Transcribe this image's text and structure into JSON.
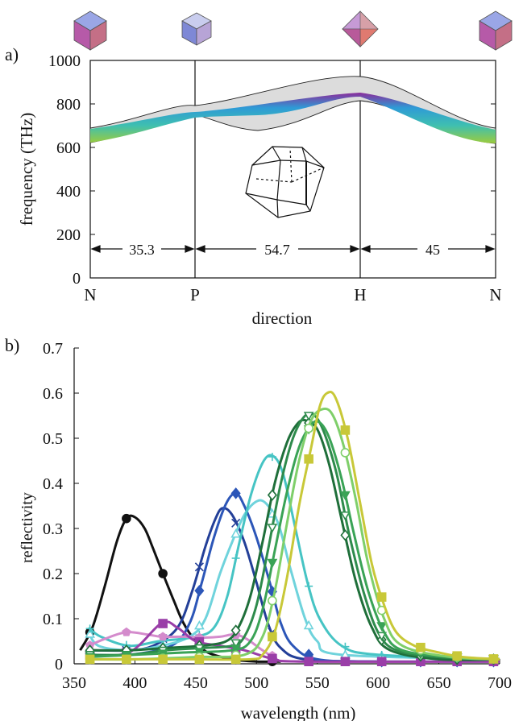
{
  "panel_a": {
    "letter": "a)",
    "ylabel": "frequency (THz)",
    "xlabel": "direction",
    "points": [
      "N",
      "P",
      "H",
      "N"
    ],
    "spans": [
      "35.3",
      "54.7",
      "45"
    ],
    "colors": {
      "band_gray": "#d9d9d9",
      "band_purple": "#8b2c9b",
      "band_blue": "#2e9bd6",
      "band_teal": "#3fbfb0",
      "band_green": "#9ccc3c"
    }
  },
  "panel_b": {
    "letter": "b)",
    "xlabel": "wavelength (nm)",
    "ylabel": "reflectivity"
  },
  "chart_data": [
    {
      "type": "area",
      "panel": "a",
      "ylabel": "frequency (THz)",
      "xlabel": "direction",
      "ylim": [
        0,
        1000
      ],
      "yticks": [
        0,
        200,
        400,
        600,
        800,
        1000
      ],
      "x_segments_deg": [
        35.3,
        54.7,
        45
      ],
      "xticks": [
        "N",
        "P",
        "H",
        "N"
      ],
      "bands": {
        "outer_top": [
          [
            0,
            690
          ],
          [
            35.3,
            790
          ],
          [
            90,
            925
          ],
          [
            135,
            690
          ]
        ],
        "outer_bottom": [
          [
            0,
            625
          ],
          [
            35.3,
            750
          ],
          [
            60,
            745
          ],
          [
            90,
            815
          ],
          [
            135,
            630
          ]
        ],
        "colored_top": [
          [
            0,
            685
          ],
          [
            35.3,
            755
          ],
          [
            90,
            845
          ],
          [
            135,
            680
          ]
        ],
        "colored_bottom": [
          [
            0,
            630
          ],
          [
            35.3,
            745
          ],
          [
            90,
            830
          ],
          [
            135,
            640
          ]
        ]
      }
    },
    {
      "type": "line",
      "panel": "b",
      "xlabel": "wavelength (nm)",
      "ylabel": "reflectivity",
      "xlim": [
        350,
        700
      ],
      "ylim": [
        0,
        0.7
      ],
      "xticks": [
        350,
        400,
        450,
        500,
        550,
        600,
        650,
        700
      ],
      "yticks": [
        0,
        0.1,
        0.2,
        0.3,
        0.4,
        0.5,
        0.6,
        0.7
      ],
      "series": [
        {
          "color": "#111111",
          "marker": "circle-filled",
          "points": [
            [
              355,
              0.03
            ],
            [
              365,
              0.08
            ],
            [
              375,
              0.17
            ],
            [
              385,
              0.27
            ],
            [
              393,
              0.322
            ],
            [
              400,
              0.325
            ],
            [
              408,
              0.3
            ],
            [
              415,
              0.255
            ],
            [
              423,
              0.2
            ],
            [
              432,
              0.14
            ],
            [
              440,
              0.09
            ],
            [
              450,
              0.05
            ],
            [
              460,
              0.025
            ],
            [
              480,
              0.01
            ],
            [
              500,
              0.005
            ],
            [
              520,
              0.005
            ]
          ]
        },
        {
          "color": "#233f98",
          "marker": "x",
          "points": [
            [
              365,
              0.03
            ],
            [
              395,
              0.03
            ],
            [
              415,
              0.04
            ],
            [
              435,
              0.08
            ],
            [
              447,
              0.16
            ],
            [
              458,
              0.26
            ],
            [
              466,
              0.32
            ],
            [
              472,
              0.345
            ],
            [
              480,
              0.33
            ],
            [
              490,
              0.27
            ],
            [
              500,
              0.18
            ],
            [
              510,
              0.085
            ],
            [
              520,
              0.035
            ],
            [
              540,
              0.01
            ],
            [
              600,
              0.005
            ],
            [
              700,
              0.005
            ]
          ]
        },
        {
          "color": "#2c56b8",
          "marker": "diamond-filled",
          "points": [
            [
              365,
              0.02
            ],
            [
              395,
              0.02
            ],
            [
              430,
              0.04
            ],
            [
              445,
              0.09
            ],
            [
              455,
              0.18
            ],
            [
              465,
              0.28
            ],
            [
              475,
              0.355
            ],
            [
              483,
              0.378
            ],
            [
              490,
              0.35
            ],
            [
              500,
              0.28
            ],
            [
              512,
              0.17
            ],
            [
              520,
              0.09
            ],
            [
              530,
              0.04
            ],
            [
              550,
              0.01
            ],
            [
              600,
              0.005
            ],
            [
              700,
              0.005
            ]
          ]
        },
        {
          "color": "#6fd3dc",
          "marker": "triangle-open",
          "points": [
            [
              362,
              0.07
            ],
            [
              370,
              0.04
            ],
            [
              395,
              0.03
            ],
            [
              422,
              0.04
            ],
            [
              445,
              0.06
            ],
            [
              458,
              0.1
            ],
            [
              470,
              0.2
            ],
            [
              480,
              0.27
            ],
            [
              490,
              0.33
            ],
            [
              500,
              0.36
            ],
            [
              508,
              0.355
            ],
            [
              518,
              0.31
            ],
            [
              528,
              0.21
            ],
            [
              540,
              0.1
            ],
            [
              550,
              0.05
            ],
            [
              570,
              0.02
            ],
            [
              700,
              0.01
            ]
          ]
        },
        {
          "color": "#46c4c4",
          "marker": "plus",
          "points": [
            [
              362,
              0.08
            ],
            [
              372,
              0.06
            ],
            [
              395,
              0.04
            ],
            [
              420,
              0.05
            ],
            [
              450,
              0.06
            ],
            [
              465,
              0.08
            ],
            [
              476,
              0.15
            ],
            [
              486,
              0.27
            ],
            [
              496,
              0.38
            ],
            [
              506,
              0.45
            ],
            [
              514,
              0.46
            ],
            [
              522,
              0.42
            ],
            [
              532,
              0.3
            ],
            [
              542,
              0.18
            ],
            [
              552,
              0.1
            ],
            [
              570,
              0.04
            ],
            [
              600,
              0.02
            ],
            [
              700,
              0.01
            ]
          ]
        },
        {
          "color": "#d48bcc",
          "marker": "pentagon-filled",
          "points": [
            [
              362,
              0.04
            ],
            [
              375,
              0.055
            ],
            [
              393,
              0.07
            ],
            [
              410,
              0.065
            ],
            [
              422,
              0.06
            ],
            [
              440,
              0.06
            ],
            [
              455,
              0.058
            ],
            [
              470,
              0.06
            ],
            [
              482,
              0.065
            ],
            [
              492,
              0.055
            ],
            [
              505,
              0.03
            ],
            [
              515,
              0.015
            ],
            [
              535,
              0.005
            ],
            [
              700,
              0.005
            ]
          ]
        },
        {
          "color": "#9a3ea8",
          "marker": "square-filled",
          "points": [
            [
              362,
              0.02
            ],
            [
              395,
              0.025
            ],
            [
              422,
              0.09
            ],
            [
              435,
              0.08
            ],
            [
              450,
              0.05
            ],
            [
              470,
              0.04
            ],
            [
              490,
              0.03
            ],
            [
              515,
              0.01
            ],
            [
              540,
              0.005
            ],
            [
              700,
              0.005
            ]
          ]
        },
        {
          "color": "#1f6f3a",
          "marker": "diamond-open",
          "points": [
            [
              360,
              0.03
            ],
            [
              395,
              0.03
            ],
            [
              425,
              0.035
            ],
            [
              455,
              0.04
            ],
            [
              475,
              0.05
            ],
            [
              485,
              0.08
            ],
            [
              495,
              0.15
            ],
            [
              505,
              0.27
            ],
            [
              515,
              0.4
            ],
            [
              525,
              0.49
            ],
            [
              533,
              0.53
            ],
            [
              540,
              0.54
            ],
            [
              550,
              0.52
            ],
            [
              560,
              0.44
            ],
            [
              570,
              0.32
            ],
            [
              582,
              0.18
            ],
            [
              595,
              0.08
            ],
            [
              610,
              0.03
            ],
            [
              650,
              0.01
            ],
            [
              700,
              0.01
            ]
          ]
        },
        {
          "color": "#2e8b4c",
          "marker": "triangle-down-open",
          "points": [
            [
              360,
              0.02
            ],
            [
              395,
              0.02
            ],
            [
              425,
              0.03
            ],
            [
              455,
              0.035
            ],
            [
              480,
              0.04
            ],
            [
              490,
              0.06
            ],
            [
              500,
              0.13
            ],
            [
              510,
              0.26
            ],
            [
              520,
              0.4
            ],
            [
              530,
              0.5
            ],
            [
              540,
              0.55
            ],
            [
              548,
              0.55
            ],
            [
              556,
              0.51
            ],
            [
              566,
              0.42
            ],
            [
              576,
              0.29
            ],
            [
              588,
              0.16
            ],
            [
              600,
              0.07
            ],
            [
              615,
              0.03
            ],
            [
              650,
              0.015
            ],
            [
              700,
              0.01
            ]
          ]
        },
        {
          "color": "#3aa356",
          "marker": "triangle-down-filled",
          "points": [
            [
              360,
              0.015
            ],
            [
              400,
              0.02
            ],
            [
              440,
              0.025
            ],
            [
              480,
              0.03
            ],
            [
              495,
              0.05
            ],
            [
              505,
              0.12
            ],
            [
              515,
              0.25
            ],
            [
              525,
              0.38
            ],
            [
              535,
              0.48
            ],
            [
              545,
              0.53
            ],
            [
              552,
              0.535
            ],
            [
              560,
              0.5
            ],
            [
              570,
              0.41
            ],
            [
              580,
              0.29
            ],
            [
              592,
              0.16
            ],
            [
              605,
              0.07
            ],
            [
              620,
              0.03
            ],
            [
              660,
              0.015
            ],
            [
              700,
              0.01
            ]
          ]
        },
        {
          "color": "#7fcf6a",
          "marker": "circle-open",
          "points": [
            [
              360,
              0.01
            ],
            [
              400,
              0.01
            ],
            [
              450,
              0.015
            ],
            [
              490,
              0.02
            ],
            [
              505,
              0.06
            ],
            [
              515,
              0.16
            ],
            [
              525,
              0.31
            ],
            [
              535,
              0.45
            ],
            [
              545,
              0.54
            ],
            [
              555,
              0.565
            ],
            [
              563,
              0.55
            ],
            [
              572,
              0.48
            ],
            [
              582,
              0.36
            ],
            [
              592,
              0.22
            ],
            [
              605,
              0.1
            ],
            [
              620,
              0.04
            ],
            [
              660,
              0.015
            ],
            [
              700,
              0.01
            ]
          ]
        },
        {
          "color": "#c8c838",
          "marker": "square-filled",
          "points": [
            [
              360,
              0.01
            ],
            [
              400,
              0.01
            ],
            [
              450,
              0.01
            ],
            [
              495,
              0.01
            ],
            [
              505,
              0.02
            ],
            [
              515,
              0.07
            ],
            [
              525,
              0.19
            ],
            [
              535,
              0.35
            ],
            [
              545,
              0.48
            ],
            [
              552,
              0.57
            ],
            [
              558,
              0.6
            ],
            [
              565,
              0.59
            ],
            [
              575,
              0.5
            ],
            [
              585,
              0.36
            ],
            [
              595,
              0.22
            ],
            [
              605,
              0.13
            ],
            [
              615,
              0.07
            ],
            [
              630,
              0.04
            ],
            [
              650,
              0.025
            ],
            [
              670,
              0.015
            ],
            [
              700,
              0.01
            ]
          ]
        }
      ]
    }
  ]
}
